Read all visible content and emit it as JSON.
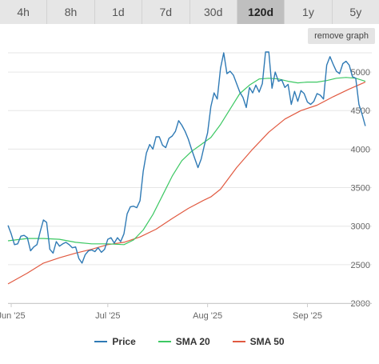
{
  "tabs": [
    {
      "label": "4h",
      "active": false
    },
    {
      "label": "8h",
      "active": false
    },
    {
      "label": "1d",
      "active": false
    },
    {
      "label": "7d",
      "active": false
    },
    {
      "label": "30d",
      "active": false
    },
    {
      "label": "120d",
      "active": true
    },
    {
      "label": "1y",
      "active": false
    },
    {
      "label": "5y",
      "active": false
    }
  ],
  "remove_graph_label": "remove graph",
  "chart_data": {
    "type": "line",
    "ylim": [
      2000,
      5250
    ],
    "y_ticks": [
      2000,
      2500,
      3000,
      3500,
      4000,
      4500,
      5000
    ],
    "x_ticks": [
      {
        "label": "Jun '25",
        "day": 0
      },
      {
        "label": "Jul '25",
        "day": 30
      },
      {
        "label": "Aug '25",
        "day": 61
      },
      {
        "label": "Sep '25",
        "day": 92
      }
    ],
    "x_range": [
      -1,
      112
    ],
    "grid": true,
    "legend_position": "bottom",
    "series": [
      {
        "name": "Price",
        "color": "#2f7ab5",
        "values": [
          [
            -1,
            3010
          ],
          [
            0,
            2900
          ],
          [
            1,
            2760
          ],
          [
            2,
            2770
          ],
          [
            3,
            2870
          ],
          [
            4,
            2880
          ],
          [
            5,
            2850
          ],
          [
            6,
            2680
          ],
          [
            7,
            2730
          ],
          [
            8,
            2760
          ],
          [
            9,
            2930
          ],
          [
            10,
            3080
          ],
          [
            11,
            3050
          ],
          [
            12,
            2700
          ],
          [
            13,
            2650
          ],
          [
            14,
            2800
          ],
          [
            15,
            2740
          ],
          [
            16,
            2770
          ],
          [
            17,
            2790
          ],
          [
            18,
            2760
          ],
          [
            19,
            2720
          ],
          [
            20,
            2730
          ],
          [
            21,
            2580
          ],
          [
            22,
            2520
          ],
          [
            23,
            2630
          ],
          [
            24,
            2680
          ],
          [
            25,
            2690
          ],
          [
            26,
            2670
          ],
          [
            27,
            2720
          ],
          [
            28,
            2660
          ],
          [
            29,
            2700
          ],
          [
            30,
            2830
          ],
          [
            31,
            2850
          ],
          [
            32,
            2780
          ],
          [
            33,
            2850
          ],
          [
            34,
            2800
          ],
          [
            35,
            2900
          ],
          [
            36,
            3160
          ],
          [
            37,
            3250
          ],
          [
            38,
            3260
          ],
          [
            39,
            3240
          ],
          [
            40,
            3330
          ],
          [
            41,
            3710
          ],
          [
            42,
            3950
          ],
          [
            43,
            4060
          ],
          [
            44,
            4000
          ],
          [
            45,
            4160
          ],
          [
            46,
            4160
          ],
          [
            47,
            4050
          ],
          [
            48,
            4020
          ],
          [
            49,
            4140
          ],
          [
            50,
            4170
          ],
          [
            51,
            4230
          ],
          [
            52,
            4370
          ],
          [
            53,
            4310
          ],
          [
            54,
            4230
          ],
          [
            55,
            4130
          ],
          [
            56,
            4000
          ],
          [
            57,
            3880
          ],
          [
            58,
            3760
          ],
          [
            59,
            3870
          ],
          [
            60,
            4050
          ],
          [
            61,
            4210
          ],
          [
            62,
            4550
          ],
          [
            63,
            4730
          ],
          [
            64,
            4650
          ],
          [
            65,
            5050
          ],
          [
            66,
            5250
          ],
          [
            67,
            4980
          ],
          [
            68,
            5010
          ],
          [
            69,
            4960
          ],
          [
            70,
            4850
          ],
          [
            71,
            4740
          ],
          [
            72,
            4670
          ],
          [
            73,
            4540
          ],
          [
            74,
            4800
          ],
          [
            75,
            4730
          ],
          [
            76,
            4830
          ],
          [
            77,
            4740
          ],
          [
            78,
            4850
          ],
          [
            79,
            5260
          ],
          [
            80,
            5260
          ],
          [
            81,
            4790
          ],
          [
            82,
            5000
          ],
          [
            83,
            4880
          ],
          [
            84,
            4900
          ],
          [
            85,
            4800
          ],
          [
            86,
            4840
          ],
          [
            87,
            4580
          ],
          [
            88,
            4750
          ],
          [
            89,
            4620
          ],
          [
            90,
            4760
          ],
          [
            91,
            4720
          ],
          [
            92,
            4610
          ],
          [
            93,
            4580
          ],
          [
            94,
            4620
          ],
          [
            95,
            4720
          ],
          [
            96,
            4700
          ],
          [
            97,
            4650
          ],
          [
            98,
            5090
          ],
          [
            99,
            5200
          ],
          [
            100,
            5100
          ],
          [
            101,
            5010
          ],
          [
            102,
            4980
          ],
          [
            103,
            5110
          ],
          [
            104,
            5140
          ],
          [
            105,
            5090
          ],
          [
            106,
            4940
          ],
          [
            107,
            4920
          ],
          [
            108,
            4580
          ],
          [
            109,
            4450
          ],
          [
            110,
            4300
          ]
        ]
      },
      {
        "name": "SMA 20",
        "color": "#3cc863",
        "values": [
          [
            -1,
            2810
          ],
          [
            5,
            2840
          ],
          [
            10,
            2840
          ],
          [
            15,
            2830
          ],
          [
            20,
            2790
          ],
          [
            25,
            2770
          ],
          [
            30,
            2770
          ],
          [
            35,
            2760
          ],
          [
            38,
            2820
          ],
          [
            41,
            2950
          ],
          [
            44,
            3150
          ],
          [
            47,
            3400
          ],
          [
            50,
            3650
          ],
          [
            53,
            3850
          ],
          [
            56,
            3970
          ],
          [
            59,
            4060
          ],
          [
            62,
            4150
          ],
          [
            65,
            4320
          ],
          [
            68,
            4520
          ],
          [
            71,
            4720
          ],
          [
            74,
            4830
          ],
          [
            77,
            4910
          ],
          [
            80,
            4920
          ],
          [
            83,
            4910
          ],
          [
            86,
            4880
          ],
          [
            89,
            4860
          ],
          [
            92,
            4870
          ],
          [
            95,
            4870
          ],
          [
            98,
            4890
          ],
          [
            101,
            4920
          ],
          [
            104,
            4930
          ],
          [
            107,
            4920
          ],
          [
            110,
            4880
          ]
        ]
      },
      {
        "name": "SMA 50",
        "color": "#e15a41",
        "values": [
          [
            -1,
            2250
          ],
          [
            5,
            2390
          ],
          [
            10,
            2520
          ],
          [
            15,
            2590
          ],
          [
            20,
            2650
          ],
          [
            25,
            2700
          ],
          [
            30,
            2760
          ],
          [
            35,
            2790
          ],
          [
            40,
            2860
          ],
          [
            45,
            2960
          ],
          [
            50,
            3100
          ],
          [
            55,
            3230
          ],
          [
            60,
            3340
          ],
          [
            62,
            3380
          ],
          [
            65,
            3480
          ],
          [
            70,
            3760
          ],
          [
            75,
            4000
          ],
          [
            80,
            4220
          ],
          [
            85,
            4390
          ],
          [
            90,
            4500
          ],
          [
            95,
            4570
          ],
          [
            100,
            4680
          ],
          [
            105,
            4780
          ],
          [
            110,
            4870
          ]
        ]
      }
    ]
  }
}
